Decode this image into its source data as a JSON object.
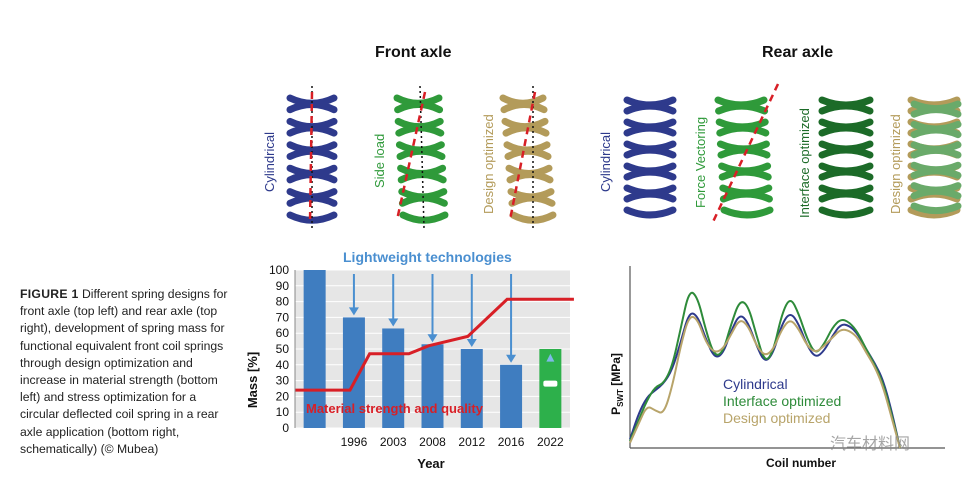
{
  "caption": {
    "label": "FIGURE 1",
    "text": "Different spring designs for front axle (top left) and rear axle (top right), development of spring mass for functional equivalent front coil springs through design optimization and increase in material strength (bottom left) and stress optimization for a circular deflected coil spring in a rear axle application (bottom right, schematically) (© Mubea)"
  },
  "front_axle": {
    "title": "Front axle",
    "springs": [
      "Cylindrical",
      "Side load",
      "Design optimized"
    ]
  },
  "rear_axle": {
    "title": "Rear axle",
    "springs": [
      "Cylindrical",
      "Force Vectoring",
      "Interface optimized",
      "Design optimized"
    ]
  },
  "colors": {
    "blue": "#2e3a8c",
    "green": "#2f9a3a",
    "dark_green": "#1c6b28",
    "gold": "#b39b5a",
    "red": "#d81f26",
    "bar_blue": "#3f7dc0",
    "bar_green": "#2db04b",
    "arrow_blue": "#4a8fd0"
  },
  "watermark": "汽车材料网",
  "chart_data": [
    {
      "type": "bar",
      "title": "Lightweight technologies",
      "xlabel": "Year",
      "ylabel": "Mass [%]",
      "ylim": [
        0,
        100
      ],
      "yticks": [
        0,
        10,
        20,
        30,
        40,
        50,
        60,
        70,
        80,
        90,
        100
      ],
      "categories": [
        "",
        "1996",
        "2003",
        "2008",
        "2012",
        "2016",
        "2022"
      ],
      "values": [
        100,
        70,
        63,
        53,
        50,
        40,
        50
      ],
      "line": {
        "name": "Material strength and quality",
        "x": [
          -0.5,
          0.9,
          1.4,
          2.4,
          2.9,
          3.9,
          4.9,
          6.6
        ],
        "y": [
          24,
          24,
          47,
          47,
          52,
          58,
          81.5,
          81.5
        ]
      }
    },
    {
      "type": "line",
      "xlabel": "Coil number",
      "ylabel": "P SWT [MPa]",
      "series": [
        {
          "name": "Cylindrical",
          "color": "#2e3a8c",
          "y": [
            0.05,
            0.2,
            0.3,
            0.34,
            0.38,
            0.46,
            0.62,
            0.8,
            0.78,
            0.64,
            0.53,
            0.55,
            0.69,
            0.79,
            0.74,
            0.6,
            0.5,
            0.56,
            0.73,
            0.8,
            0.73,
            0.6,
            0.53,
            0.57,
            0.66,
            0.73,
            0.72,
            0.67,
            0.58,
            0.5,
            0.4,
            0.22,
            0.0
          ]
        },
        {
          "name": "Interface optimized",
          "color": "#2e8b3a",
          "y": [
            0.04,
            0.16,
            0.28,
            0.36,
            0.38,
            0.48,
            0.7,
            0.93,
            0.89,
            0.69,
            0.54,
            0.56,
            0.73,
            0.87,
            0.84,
            0.66,
            0.5,
            0.57,
            0.79,
            0.89,
            0.79,
            0.64,
            0.55,
            0.61,
            0.71,
            0.76,
            0.74,
            0.68,
            0.58,
            0.49,
            0.38,
            0.2,
            0.0
          ]
        },
        {
          "name": "Design optimized",
          "color": "#b8a46a",
          "y": [
            0.03,
            0.14,
            0.25,
            0.22,
            0.2,
            0.36,
            0.6,
            0.78,
            0.76,
            0.62,
            0.56,
            0.58,
            0.67,
            0.76,
            0.72,
            0.6,
            0.54,
            0.58,
            0.7,
            0.76,
            0.7,
            0.6,
            0.56,
            0.6,
            0.65,
            0.7,
            0.69,
            0.65,
            0.56,
            0.48,
            0.36,
            0.18,
            0.0
          ]
        }
      ]
    }
  ]
}
